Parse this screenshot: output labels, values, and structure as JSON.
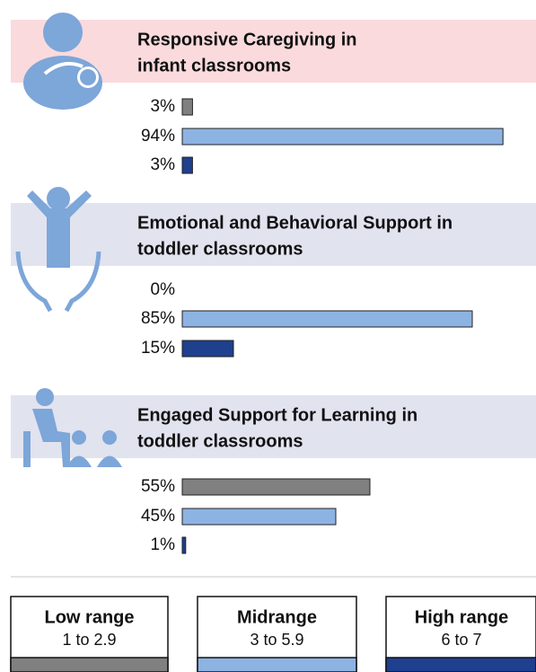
{
  "chart_data": [
    {
      "type": "bar",
      "title": [
        "Responsive Caregiving in",
        "infant classrooms"
      ],
      "values": [
        3,
        94,
        3
      ],
      "value_labels": [
        "3%",
        "94%",
        "3%"
      ],
      "xlim": [
        0,
        100
      ],
      "band_color": "#fadadd"
    },
    {
      "type": "bar",
      "title": [
        "Emotional and Behavioral Support in",
        "toddler classrooms"
      ],
      "values": [
        0,
        85,
        15
      ],
      "value_labels": [
        "0%",
        "85%",
        "15%"
      ],
      "xlim": [
        0,
        100
      ],
      "band_color": "#e1e3ef"
    },
    {
      "type": "bar",
      "title": [
        "Engaged Support for Learning in",
        "toddler classrooms"
      ],
      "values": [
        55,
        45,
        1
      ],
      "value_labels": [
        "55%",
        "45%",
        "1%"
      ],
      "xlim": [
        0,
        100
      ],
      "band_color": "#e1e3ef"
    }
  ],
  "legend": [
    {
      "label": "Low range",
      "range": "1 to 2.9",
      "color": "#808080"
    },
    {
      "label": "Midrange",
      "range": "3 to 5.9",
      "color": "#8db3e2"
    },
    {
      "label": "High range",
      "range": "6 to 7",
      "color": "#1f3f8f"
    }
  ]
}
